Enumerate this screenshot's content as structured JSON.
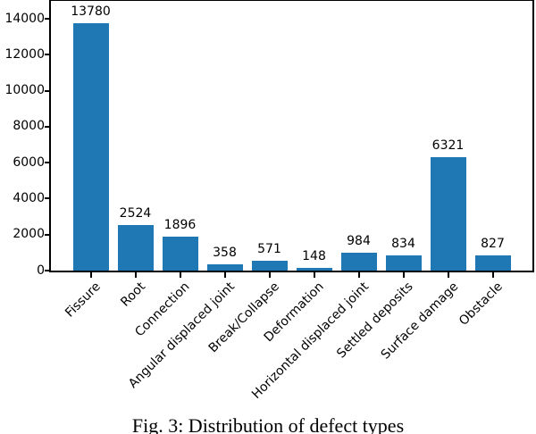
{
  "figure": {
    "caption": "Fig. 3: Distribution of defect types"
  },
  "chart_data": {
    "type": "bar",
    "title": "",
    "xlabel": "",
    "ylabel": "",
    "categories": [
      "Fissure",
      "Root",
      "Connection",
      "Angular displaced joint",
      "Break/Collapse",
      "Deformation",
      "Horizontal displaced joint",
      "Settled deposits",
      "Surface damage",
      "Obstacle"
    ],
    "values": [
      13780,
      2524,
      1896,
      358,
      571,
      148,
      984,
      834,
      6321,
      827
    ],
    "bar_labels": [
      13780,
      2524,
      1896,
      358,
      571,
      148,
      984,
      834,
      6321,
      827
    ],
    "yticks": [
      0,
      2000,
      4000,
      6000,
      8000,
      10000,
      12000,
      14000
    ],
    "ylim": [
      0,
      15000
    ],
    "bar_color": "#1f77b4",
    "axis_color": "#000000",
    "grid": false,
    "legend": null,
    "xtick_rotation": 45
  }
}
